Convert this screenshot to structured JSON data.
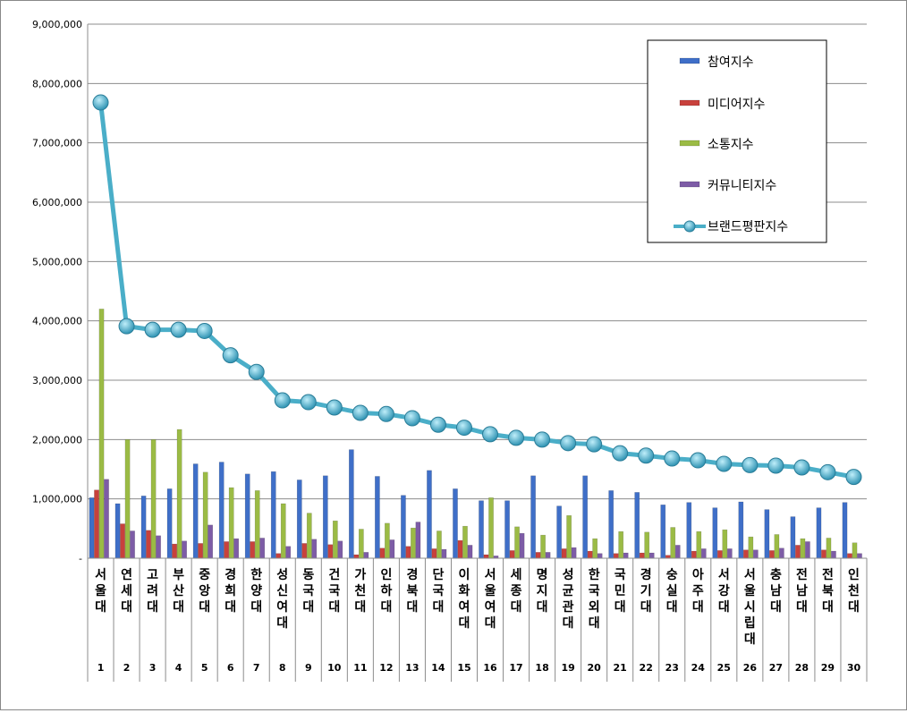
{
  "chart_data": {
    "type": "bar",
    "title": "",
    "xlabel": "",
    "ylabel": "",
    "ylim": [
      0,
      9000000
    ],
    "yticks": [
      "-",
      "1,000,000",
      "2,000,000",
      "3,000,000",
      "4,000,000",
      "5,000,000",
      "6,000,000",
      "7,000,000",
      "8,000,000",
      "9,000,000"
    ],
    "grid": true,
    "legend_position": "top-right",
    "categories": [
      "서울대",
      "연세대",
      "고려대",
      "부산대",
      "중앙대",
      "경희대",
      "한양대",
      "성신여대",
      "동국대",
      "건국대",
      "가천대",
      "인하대",
      "경북대",
      "단국대",
      "이화여대",
      "서울여대",
      "세종대",
      "명지대",
      "성균관대",
      "한국외대",
      "국민대",
      "경기대",
      "숭실대",
      "아주대",
      "서강대",
      "서울시립대",
      "충남대",
      "전남대",
      "전북대",
      "인천대"
    ],
    "ranks": [
      "1",
      "2",
      "3",
      "4",
      "5",
      "6",
      "7",
      "8",
      "9",
      "10",
      "11",
      "12",
      "13",
      "14",
      "15",
      "16",
      "17",
      "18",
      "19",
      "20",
      "21",
      "22",
      "23",
      "24",
      "25",
      "26",
      "27",
      "28",
      "29",
      "30"
    ],
    "series": [
      {
        "name": "참여지수",
        "type": "bar",
        "color": "#3f6fc8",
        "values": [
          1020000,
          920000,
          1050000,
          1170000,
          1590000,
          1620000,
          1420000,
          1460000,
          1320000,
          1390000,
          1830000,
          1380000,
          1060000,
          1480000,
          1170000,
          970000,
          970000,
          1390000,
          880000,
          1390000,
          1140000,
          1110000,
          900000,
          940000,
          850000,
          950000,
          820000,
          700000,
          850000,
          940000
        ]
      },
      {
        "name": "미디어지수",
        "type": "bar",
        "color": "#c8413c",
        "values": [
          1150000,
          580000,
          470000,
          240000,
          250000,
          280000,
          280000,
          80000,
          250000,
          230000,
          60000,
          170000,
          200000,
          160000,
          300000,
          60000,
          130000,
          100000,
          160000,
          120000,
          80000,
          90000,
          50000,
          120000,
          130000,
          140000,
          130000,
          220000,
          140000,
          80000
        ]
      },
      {
        "name": "소통지수",
        "type": "bar",
        "color": "#9bbb45",
        "values": [
          4200000,
          2000000,
          2000000,
          2170000,
          1450000,
          1190000,
          1140000,
          920000,
          760000,
          630000,
          490000,
          590000,
          510000,
          460000,
          540000,
          1020000,
          530000,
          390000,
          720000,
          330000,
          450000,
          440000,
          520000,
          450000,
          480000,
          360000,
          400000,
          330000,
          340000,
          260000
        ]
      },
      {
        "name": "커뮤니티지수",
        "type": "bar",
        "color": "#7d5ca6",
        "values": [
          1330000,
          460000,
          380000,
          290000,
          560000,
          330000,
          340000,
          200000,
          320000,
          290000,
          100000,
          310000,
          610000,
          150000,
          220000,
          40000,
          420000,
          100000,
          180000,
          80000,
          90000,
          90000,
          220000,
          160000,
          160000,
          140000,
          170000,
          280000,
          120000,
          80000
        ]
      },
      {
        "name": "브랜드평판지수",
        "type": "line",
        "color": "#4aaec8",
        "values": [
          7680000,
          3910000,
          3850000,
          3850000,
          3830000,
          3420000,
          3140000,
          2660000,
          2630000,
          2540000,
          2450000,
          2430000,
          2360000,
          2250000,
          2200000,
          2090000,
          2030000,
          2000000,
          1940000,
          1920000,
          1770000,
          1730000,
          1680000,
          1650000,
          1590000,
          1570000,
          1560000,
          1530000,
          1450000,
          1370000
        ]
      }
    ]
  }
}
